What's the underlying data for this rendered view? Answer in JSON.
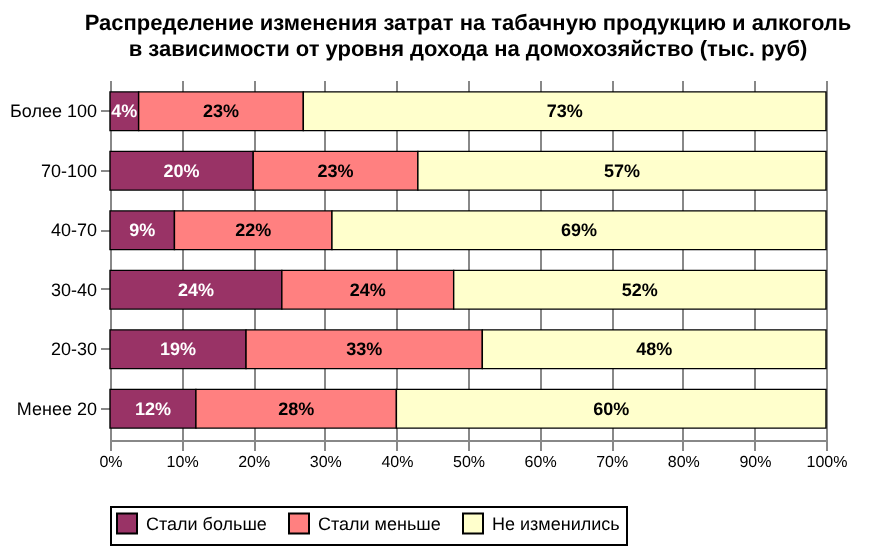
{
  "chart_data": {
    "type": "bar",
    "orientation": "horizontal",
    "stacked": true,
    "title": "Распределение изменения затрат на табачную продукцию и алкоголь\nв зависимости от уровня дохода на домохозяйство (тыс. руб)",
    "categories": [
      "Более 100",
      "70-100",
      "40-70",
      "30-40",
      "20-30",
      "Менее 20"
    ],
    "series": [
      {
        "name": "Стали больше",
        "color": "#993366",
        "values": [
          4,
          20,
          9,
          24,
          19,
          12
        ],
        "value_labels": [
          "4%",
          "20%",
          "9%",
          "24%",
          "19%",
          "12%"
        ]
      },
      {
        "name": "Стали меньше",
        "color": "#ff8080",
        "values": [
          23,
          23,
          22,
          24,
          33,
          28
        ],
        "value_labels": [
          "23%",
          "23%",
          "22%",
          "24%",
          "33%",
          "28%"
        ]
      },
      {
        "name": "Не изменились",
        "color": "#ffffcc",
        "values": [
          73,
          57,
          69,
          52,
          48,
          60
        ],
        "value_labels": [
          "73%",
          "57%",
          "69%",
          "52%",
          "48%",
          "60%"
        ]
      }
    ],
    "xlim": [
      0,
      100
    ],
    "xticks": [
      {
        "value": 0,
        "label": "0%"
      },
      {
        "value": 10,
        "label": "10%"
      },
      {
        "value": 20,
        "label": "20%"
      },
      {
        "value": 30,
        "label": "30%"
      },
      {
        "value": 40,
        "label": "40%"
      },
      {
        "value": 50,
        "label": "50%"
      },
      {
        "value": 60,
        "label": "60%"
      },
      {
        "value": 70,
        "label": "70%"
      },
      {
        "value": 80,
        "label": "80%"
      },
      {
        "value": 90,
        "label": "90%"
      },
      {
        "value": 100,
        "label": "100%"
      }
    ],
    "grid": "x",
    "legend": "bottom"
  }
}
